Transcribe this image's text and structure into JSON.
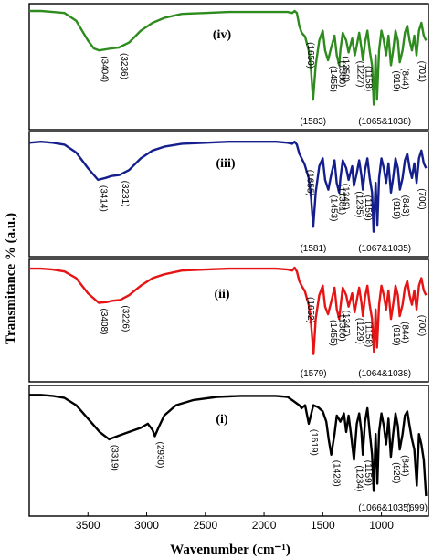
{
  "chart_data": {
    "type": "line",
    "xlabel": "Wavenumber (cm⁻¹)",
    "ylabel": "Transmitance % (a.u.)",
    "x_ticks": [
      "3500",
      "3000",
      "2500",
      "2000",
      "1500",
      "1000"
    ],
    "x_tick_values": [
      3500,
      3000,
      2500,
      2000,
      1500,
      1000
    ],
    "xlim": [
      4000,
      600
    ],
    "x_reversed": true,
    "panels": [
      {
        "label": "(iv)",
        "color": "#2e8b1e",
        "x": [
          4000,
          3900,
          3800,
          3700,
          3600,
          3500,
          3450,
          3404,
          3300,
          3236,
          3150,
          3050,
          2950,
          2850,
          2700,
          2500,
          2300,
          2100,
          1900,
          1800,
          1760,
          1740,
          1720,
          1700,
          1680,
          1650,
          1620,
          1600,
          1583,
          1560,
          1530,
          1500,
          1480,
          1455,
          1430,
          1400,
          1380,
          1360,
          1350,
          1330,
          1300,
          1280,
          1250,
          1227,
          1210,
          1190,
          1170,
          1158,
          1140,
          1120,
          1100,
          1080,
          1065,
          1050,
          1038,
          1020,
          1000,
          980,
          960,
          940,
          919,
          900,
          880,
          860,
          844,
          820,
          800,
          780,
          760,
          740,
          720,
          701,
          680,
          660,
          640,
          620
        ],
        "values": [
          100,
          100,
          99,
          98,
          90,
          70,
          62,
          60,
          62,
          63,
          68,
          80,
          88,
          93,
          97,
          98,
          99,
          99,
          99,
          99,
          98,
          100,
          98,
          85,
          78,
          74,
          60,
          40,
          10,
          45,
          70,
          80,
          60,
          50,
          62,
          75,
          55,
          45,
          60,
          78,
          70,
          58,
          72,
          55,
          65,
          78,
          62,
          50,
          68,
          80,
          60,
          45,
          5,
          55,
          10,
          60,
          80,
          70,
          55,
          75,
          45,
          60,
          80,
          70,
          48,
          60,
          78,
          85,
          70,
          60,
          75,
          55,
          80,
          88,
          75,
          70
        ]
      },
      {
        "label": "(iii)",
        "color": "#141e8c",
        "x": [
          4000,
          3900,
          3800,
          3700,
          3600,
          3500,
          3414,
          3350,
          3300,
          3231,
          3150,
          3050,
          2950,
          2850,
          2700,
          2500,
          2300,
          2100,
          1900,
          1800,
          1760,
          1740,
          1720,
          1700,
          1680,
          1655,
          1620,
          1600,
          1581,
          1560,
          1530,
          1500,
          1480,
          1453,
          1430,
          1400,
          1381,
          1360,
          1349,
          1330,
          1300,
          1280,
          1250,
          1235,
          1210,
          1190,
          1170,
          1159,
          1140,
          1120,
          1100,
          1080,
          1067,
          1050,
          1035,
          1020,
          1000,
          980,
          960,
          940,
          919,
          900,
          880,
          860,
          843,
          820,
          800,
          780,
          760,
          740,
          720,
          700,
          680,
          660,
          640,
          620
        ],
        "values": [
          96,
          97,
          96,
          94,
          86,
          70,
          58,
          60,
          62,
          63,
          68,
          80,
          88,
          92,
          95,
          96,
          97,
          97,
          97,
          96,
          95,
          97,
          94,
          85,
          80,
          74,
          60,
          40,
          10,
          45,
          72,
          80,
          58,
          48,
          62,
          78,
          55,
          45,
          60,
          78,
          70,
          58,
          72,
          52,
          65,
          78,
          62,
          48,
          68,
          80,
          60,
          45,
          5,
          55,
          12,
          60,
          80,
          70,
          55,
          75,
          45,
          60,
          80,
          70,
          48,
          60,
          78,
          85,
          70,
          60,
          75,
          55,
          80,
          88,
          75,
          70
        ]
      },
      {
        "label": "(ii)",
        "color": "#e61414",
        "x": [
          4000,
          3900,
          3800,
          3700,
          3600,
          3500,
          3408,
          3330,
          3300,
          3226,
          3150,
          3050,
          2950,
          2850,
          2700,
          2500,
          2300,
          2100,
          1900,
          1800,
          1760,
          1740,
          1720,
          1700,
          1680,
          1652,
          1620,
          1600,
          1579,
          1560,
          1530,
          1500,
          1480,
          1455,
          1430,
          1400,
          1380,
          1360,
          1347,
          1330,
          1300,
          1280,
          1250,
          1229,
          1210,
          1190,
          1170,
          1158,
          1140,
          1120,
          1100,
          1080,
          1064,
          1050,
          1038,
          1020,
          1000,
          980,
          960,
          940,
          919,
          900,
          880,
          860,
          844,
          820,
          800,
          780,
          760,
          740,
          720,
          700,
          680,
          660,
          640,
          620
        ],
        "values": [
          98,
          98,
          97,
          95,
          88,
          72,
          62,
          63,
          64,
          65,
          70,
          80,
          88,
          92,
          96,
          97,
          98,
          98,
          98,
          97,
          96,
          99,
          95,
          85,
          80,
          74,
          60,
          40,
          8,
          45,
          70,
          80,
          58,
          50,
          62,
          78,
          55,
          45,
          60,
          78,
          70,
          58,
          72,
          52,
          65,
          78,
          62,
          48,
          68,
          80,
          60,
          45,
          10,
          55,
          15,
          60,
          80,
          70,
          55,
          75,
          45,
          60,
          80,
          70,
          48,
          60,
          78,
          85,
          70,
          60,
          75,
          55,
          80,
          88,
          75,
          70
        ]
      },
      {
        "label": "(i)",
        "color": "#000000",
        "x": [
          4000,
          3900,
          3800,
          3700,
          3600,
          3500,
          3400,
          3319,
          3250,
          3150,
          3050,
          2990,
          2950,
          2930,
          2900,
          2850,
          2750,
          2600,
          2400,
          2200,
          2000,
          1900,
          1800,
          1750,
          1700,
          1680,
          1650,
          1619,
          1580,
          1540,
          1500,
          1470,
          1450,
          1428,
          1400,
          1380,
          1350,
          1320,
          1300,
          1280,
          1260,
          1234,
          1210,
          1190,
          1170,
          1159,
          1140,
          1120,
          1100,
          1080,
          1066,
          1050,
          1035,
          1020,
          1000,
          980,
          960,
          940,
          920,
          900,
          880,
          860,
          844,
          820,
          800,
          780,
          760,
          740,
          720,
          699,
          680,
          660,
          640,
          620
        ],
        "values": [
          98,
          98,
          97,
          95,
          88,
          75,
          62,
          55,
          58,
          62,
          66,
          70,
          64,
          58,
          66,
          78,
          88,
          93,
          96,
          97,
          97,
          97,
          96,
          92,
          88,
          85,
          88,
          70,
          88,
          86,
          82,
          72,
          55,
          40,
          60,
          78,
          72,
          80,
          62,
          78,
          60,
          35,
          70,
          80,
          62,
          40,
          72,
          85,
          62,
          40,
          5,
          60,
          12,
          62,
          80,
          68,
          50,
          75,
          38,
          60,
          80,
          68,
          45,
          60,
          78,
          82,
          68,
          55,
          45,
          10,
          60,
          50,
          35,
          0
        ]
      }
    ],
    "annotations": [
      {
        "panel": 0,
        "text": "(3404)",
        "x": 3404
      },
      {
        "panel": 0,
        "text": "(3236)",
        "x": 3236
      },
      {
        "panel": 0,
        "text": "(1650)",
        "x": 1650
      },
      {
        "panel": 0,
        "text": "(1583)",
        "x": 1583
      },
      {
        "panel": 0,
        "text": "(1455)",
        "x": 1455
      },
      {
        "panel": 0,
        "text": "(1380)",
        "x": 1380
      },
      {
        "panel": 0,
        "text": "(1350)",
        "x": 1350
      },
      {
        "panel": 0,
        "text": "(1227)",
        "x": 1227
      },
      {
        "panel": 0,
        "text": "(1158)",
        "x": 1158
      },
      {
        "panel": 0,
        "text": "(1065&1038)",
        "x": 1050
      },
      {
        "panel": 0,
        "text": "(919)",
        "x": 919
      },
      {
        "panel": 0,
        "text": "(844)",
        "x": 844
      },
      {
        "panel": 0,
        "text": "(701)",
        "x": 701
      },
      {
        "panel": 1,
        "text": "(3414)",
        "x": 3414
      },
      {
        "panel": 1,
        "text": "(3231)",
        "x": 3231
      },
      {
        "panel": 1,
        "text": "(1655)",
        "x": 1655
      },
      {
        "panel": 1,
        "text": "(1581)",
        "x": 1581
      },
      {
        "panel": 1,
        "text": "(1453)",
        "x": 1453
      },
      {
        "panel": 1,
        "text": "(1381)",
        "x": 1381
      },
      {
        "panel": 1,
        "text": "(1349)",
        "x": 1349
      },
      {
        "panel": 1,
        "text": "(1235)",
        "x": 1235
      },
      {
        "panel": 1,
        "text": "(1159)",
        "x": 1159
      },
      {
        "panel": 1,
        "text": "(1067&1035)",
        "x": 1050
      },
      {
        "panel": 1,
        "text": "(919)",
        "x": 919
      },
      {
        "panel": 1,
        "text": "(843)",
        "x": 843
      },
      {
        "panel": 1,
        "text": "(700)",
        "x": 700
      },
      {
        "panel": 2,
        "text": "(3408)",
        "x": 3408
      },
      {
        "panel": 2,
        "text": "(3226)",
        "x": 3226
      },
      {
        "panel": 2,
        "text": "(1652)",
        "x": 1652
      },
      {
        "panel": 2,
        "text": "(1579)",
        "x": 1579
      },
      {
        "panel": 2,
        "text": "(1455)",
        "x": 1455
      },
      {
        "panel": 2,
        "text": "(1380)",
        "x": 1380
      },
      {
        "panel": 2,
        "text": "(1347)",
        "x": 1347
      },
      {
        "panel": 2,
        "text": "(1229)",
        "x": 1229
      },
      {
        "panel": 2,
        "text": "(1158)",
        "x": 1158
      },
      {
        "panel": 2,
        "text": "(1064&1038)",
        "x": 1050
      },
      {
        "panel": 2,
        "text": "(919)",
        "x": 919
      },
      {
        "panel": 2,
        "text": "(844)",
        "x": 844
      },
      {
        "panel": 2,
        "text": "(700)",
        "x": 700
      },
      {
        "panel": 3,
        "text": "(3319)",
        "x": 3319
      },
      {
        "panel": 3,
        "text": "(2930)",
        "x": 2930
      },
      {
        "panel": 3,
        "text": "(1619)",
        "x": 1619
      },
      {
        "panel": 3,
        "text": "(1428)",
        "x": 1428
      },
      {
        "panel": 3,
        "text": "(1234)",
        "x": 1234
      },
      {
        "panel": 3,
        "text": "(1159)",
        "x": 1159
      },
      {
        "panel": 3,
        "text": "(920)",
        "x": 920
      },
      {
        "panel": 3,
        "text": "(844)",
        "x": 844
      },
      {
        "panel": 3,
        "text": "(1066&1035)",
        "x": 1050
      },
      {
        "panel": 3,
        "text": "(699)",
        "x": 699
      }
    ]
  }
}
